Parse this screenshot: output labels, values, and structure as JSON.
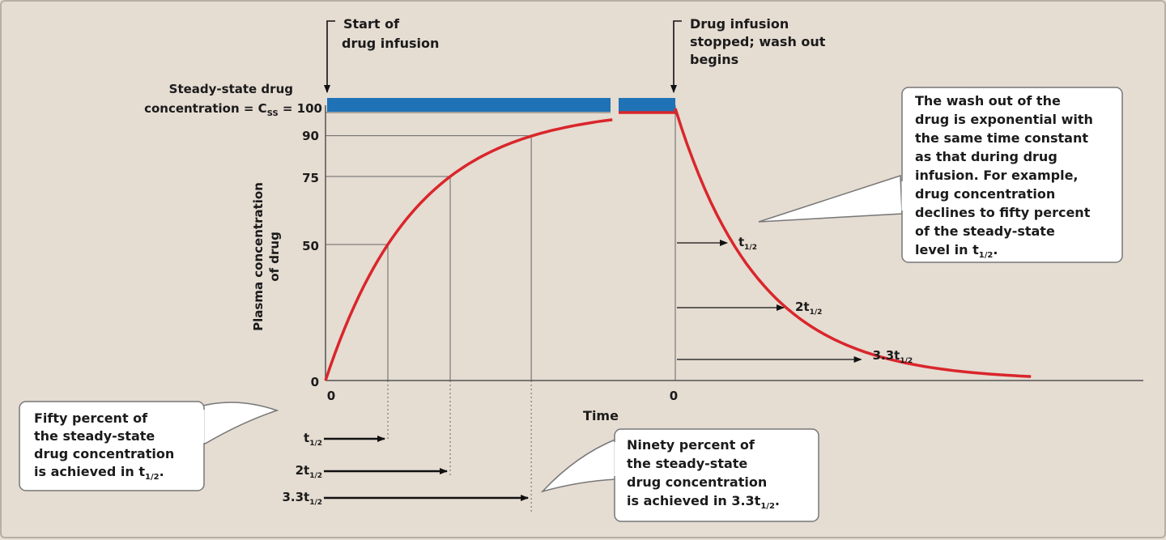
{
  "chart_data": {
    "type": "line",
    "ylabel": "Plasma concentration of drug",
    "xlabel": "Time",
    "yticks": [
      "0",
      "50",
      "75",
      "90",
      "100"
    ],
    "steady_state_label_line1": "Steady-state drug",
    "steady_state_label_line2": "concentration = C",
    "steady_state_sub": "SS",
    "steady_state_value": " = 100",
    "x_origin_infusion": "0",
    "x_origin_washout": "0",
    "infusion_curve": {
      "x_halflives": [
        0,
        1,
        2,
        3.3,
        4,
        5,
        6
      ],
      "y": [
        0,
        50,
        75,
        90,
        93.75,
        96.9,
        98.4
      ]
    },
    "washout_curve": {
      "x_halflives": [
        0,
        1,
        2,
        3.3,
        4,
        5
      ],
      "y": [
        100,
        50,
        25,
        10,
        6.25,
        3.1
      ]
    },
    "series": [
      {
        "color": "#d9262b"
      },
      {
        "color": "#1a73b8"
      }
    ],
    "annotations": {
      "start_infusion": [
        "Start of",
        "drug infusion"
      ],
      "infusion_stopped": [
        "Drug infusion",
        "stopped; wash out",
        "begins"
      ],
      "washout_marks": [
        {
          "prefix": "t",
          "sub": "1/2"
        },
        {
          "prefix": "2t",
          "sub": "1/2"
        },
        {
          "prefix": "3.3t",
          "sub": "1/2"
        }
      ],
      "infusion_marks": [
        {
          "prefix": "t",
          "sub": "1/2"
        },
        {
          "prefix": "2t",
          "sub": "1/2"
        },
        {
          "prefix": "3.3t",
          "sub": "1/2"
        }
      ],
      "washout_callout": [
        "The wash out of the",
        "drug is exponential with",
        "the same time constant",
        "as that during drug",
        "infusion. For example,",
        "drug concentration",
        "declines to fifty percent",
        "of the steady-state",
        "level in t"
      ],
      "washout_callout_sub": "1/2",
      "washout_callout_end": ".",
      "fifty_callout": [
        "Fifty percent of",
        "the steady-state",
        "drug concentration",
        "is achieved in t"
      ],
      "fifty_callout_sub": "1/2",
      "fifty_callout_end": ".",
      "ninety_callout": [
        "Ninety percent of",
        "the steady-state",
        "drug concentration",
        "is achieved in 3.3t"
      ],
      "ninety_callout_sub": "1/2",
      "ninety_callout_end": "."
    }
  }
}
